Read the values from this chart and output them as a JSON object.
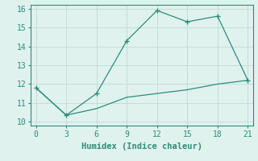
{
  "line1_x": [
    0,
    3,
    6,
    9,
    12,
    15,
    18,
    21
  ],
  "line1_y": [
    11.8,
    10.35,
    11.5,
    14.3,
    15.9,
    15.3,
    15.6,
    12.2
  ],
  "line2_x": [
    0,
    3,
    6,
    9,
    12,
    15,
    18,
    21
  ],
  "line2_y": [
    11.8,
    10.35,
    10.7,
    11.3,
    11.5,
    11.7,
    12.0,
    12.2
  ],
  "line_color": "#2e8b7a",
  "bg_color": "#dff2ee",
  "grid_color": "#c5ddd8",
  "xlabel": "Humidex (Indice chaleur)",
  "xlim": [
    -0.5,
    21.5
  ],
  "ylim": [
    9.8,
    16.2
  ],
  "xticks": [
    0,
    3,
    6,
    9,
    12,
    15,
    18,
    21
  ],
  "yticks": [
    10,
    11,
    12,
    13,
    14,
    15,
    16
  ],
  "xlabel_fontsize": 7.5,
  "tick_fontsize": 7
}
